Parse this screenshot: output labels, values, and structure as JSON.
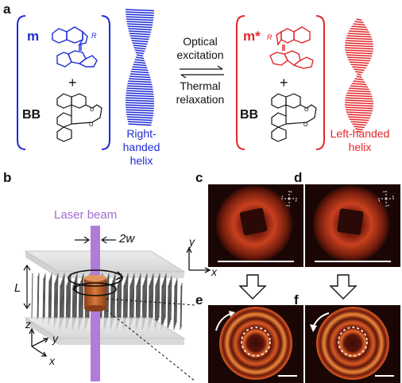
{
  "panels": {
    "a": "a",
    "b": "b",
    "c": "c",
    "d": "d",
    "e": "e",
    "f": "f"
  },
  "panel_a": {
    "m_label": "m",
    "m_star_label": "m*",
    "plus": "+",
    "bb_label": "BB",
    "r_group": "R",
    "forward_process_line1": "Optical",
    "forward_process_line2": "excitation",
    "reverse_process_line1": "Thermal",
    "reverse_process_line2": "relaxation",
    "right_helix_line1": "Right-handed",
    "right_helix_line2": "helix",
    "left_helix_line1": "Left-handed",
    "left_helix_line2": "helix"
  },
  "panel_b": {
    "laser_label": "Laser beam",
    "width_label": "2w",
    "thickness_label": "L",
    "axis_z": "z",
    "axis_y": "y",
    "axis_x": "x"
  },
  "panel_cd": {
    "axis_y": "y",
    "axis_x": "x"
  },
  "colors": {
    "blue": "#1f2bd6",
    "red": "#e3262b",
    "laser": "#b07cd8",
    "cylinder": "#c8602a"
  }
}
